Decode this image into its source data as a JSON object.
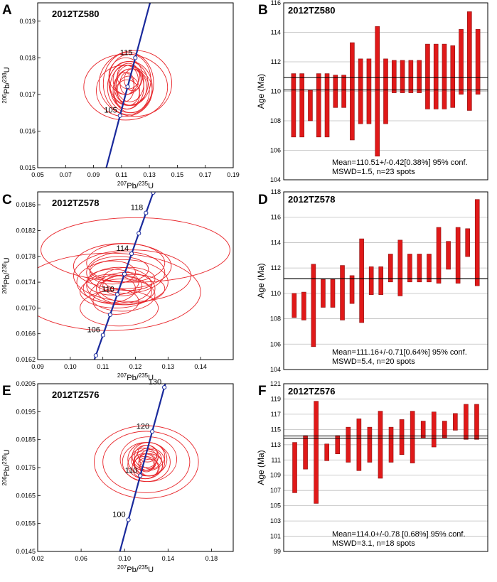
{
  "figure": {
    "concordia_axis_labels": {
      "y": {
        "sup": "206",
        "elem": "Pb/",
        "sup2": "238",
        "elem2": "U"
      },
      "x": {
        "sup": "207",
        "elem": "Pb/",
        "sup2": "235",
        "elem2": "U"
      }
    },
    "age_axis_label": "Age (Ma)"
  },
  "chart_data": [
    {
      "type": "concordia",
      "panel_letter": "A",
      "sample": "2012TZ580",
      "xlim": [
        0.05,
        0.19
      ],
      "ylim": [
        0.015,
        0.0195
      ],
      "x_ticks": [
        "0.05",
        "0.07",
        "0.09",
        "0.11",
        "0.13",
        "0.15",
        "0.17",
        "0.19"
      ],
      "y_ticks": [
        "0.015",
        "0.016",
        "0.017",
        "0.018",
        "0.019"
      ],
      "age_labels": [
        {
          "age": 115,
          "text": "115"
        },
        {
          "age": 105,
          "text": "105"
        }
      ],
      "tick_ages": [
        105,
        110,
        115
      ],
      "curve_age_range": [
        93,
        126
      ],
      "ellipses": [
        {
          "x": 0.115,
          "y": 0.0173,
          "rx": 0.018,
          "ry": 0.00085
        },
        {
          "x": 0.113,
          "y": 0.0172,
          "rx": 0.03,
          "ry": 0.0009
        },
        {
          "x": 0.115,
          "y": 0.0173,
          "rx": 0.014,
          "ry": 0.0006
        },
        {
          "x": 0.114,
          "y": 0.0172,
          "rx": 0.012,
          "ry": 0.0006
        },
        {
          "x": 0.116,
          "y": 0.0173,
          "rx": 0.01,
          "ry": 0.0005
        },
        {
          "x": 0.113,
          "y": 0.0174,
          "rx": 0.009,
          "ry": 0.0004
        },
        {
          "x": 0.117,
          "y": 0.0172,
          "rx": 0.011,
          "ry": 0.0005
        },
        {
          "x": 0.115,
          "y": 0.0171,
          "rx": 0.008,
          "ry": 0.0004
        },
        {
          "x": 0.112,
          "y": 0.0172,
          "rx": 0.007,
          "ry": 0.0004
        },
        {
          "x": 0.118,
          "y": 0.0174,
          "rx": 0.006,
          "ry": 0.0003
        },
        {
          "x": 0.114,
          "y": 0.0173,
          "rx": 0.005,
          "ry": 0.0003
        },
        {
          "x": 0.116,
          "y": 0.0172,
          "rx": 0.016,
          "ry": 0.0007
        },
        {
          "x": 0.12,
          "y": 0.0173,
          "rx": 0.026,
          "ry": 0.0009
        },
        {
          "x": 0.116,
          "y": 0.0174,
          "rx": 0.015,
          "ry": 0.0007
        },
        {
          "x": 0.112,
          "y": 0.0171,
          "rx": 0.02,
          "ry": 0.0007
        },
        {
          "x": 0.113,
          "y": 0.0175,
          "rx": 0.012,
          "ry": 0.0005
        },
        {
          "x": 0.117,
          "y": 0.0171,
          "rx": 0.013,
          "ry": 0.0006
        },
        {
          "x": 0.115,
          "y": 0.0175,
          "rx": 0.008,
          "ry": 0.00035
        },
        {
          "x": 0.114,
          "y": 0.017,
          "rx": 0.009,
          "ry": 0.0004
        }
      ]
    },
    {
      "type": "bar",
      "panel_letter": "B",
      "sample": "2012TZ580",
      "ylim": [
        104,
        116
      ],
      "y_ticks": [
        104,
        106,
        108,
        110,
        112,
        114,
        116
      ],
      "mean": 110.51,
      "mean_band": [
        110.09,
        110.93
      ],
      "annotation_line1": "Mean=110.51+/-0.42[0.38%] 95% conf.",
      "annotation_line2": "MSWD=1.5, n=23 spots",
      "bars": [
        [
          106.9,
          111.2
        ],
        [
          106.9,
          111.2
        ],
        [
          108.0,
          110.1
        ],
        [
          106.9,
          111.2
        ],
        [
          106.9,
          111.2
        ],
        [
          108.9,
          111.1
        ],
        [
          108.9,
          111.1
        ],
        [
          106.7,
          113.3
        ],
        [
          107.8,
          112.2
        ],
        [
          107.8,
          112.2
        ],
        [
          105.6,
          114.4
        ],
        [
          107.8,
          112.2
        ],
        [
          109.9,
          112.1
        ],
        [
          109.9,
          112.1
        ],
        [
          109.9,
          112.1
        ],
        [
          109.9,
          112.1
        ],
        [
          108.8,
          113.2
        ],
        [
          108.8,
          113.2
        ],
        [
          108.8,
          113.2
        ],
        [
          108.9,
          113.1
        ],
        [
          109.8,
          114.2
        ],
        [
          108.7,
          115.4
        ],
        [
          109.8,
          114.2
        ]
      ]
    },
    {
      "type": "concordia",
      "panel_letter": "C",
      "sample": "2012TZ578",
      "xlim": [
        0.09,
        0.15
      ],
      "ylim": [
        0.0162,
        0.0188
      ],
      "x_ticks": [
        "0.09",
        "0.10",
        "0.11",
        "0.12",
        "0.13",
        "0.14"
      ],
      "y_ticks": [
        "0.0162",
        "0.0166",
        "0.0170",
        "0.0174",
        "0.0178",
        "0.0182",
        "0.0186"
      ],
      "age_labels": [
        {
          "age": 118,
          "text": "118"
        },
        {
          "age": 114,
          "text": "114"
        },
        {
          "age": 110,
          "text": "110"
        },
        {
          "age": 106,
          "text": "106"
        }
      ],
      "tick_ages": [
        104,
        106,
        108,
        110,
        112,
        114,
        116,
        118,
        120
      ],
      "curve_age_range": [
        102,
        121
      ],
      "ellipses": [
        {
          "x": 0.12,
          "y": 0.0179,
          "rx": 0.029,
          "ry": 0.0005
        },
        {
          "x": 0.112,
          "y": 0.01725,
          "rx": 0.028,
          "ry": 0.0006
        },
        {
          "x": 0.119,
          "y": 0.0175,
          "rx": 0.018,
          "ry": 0.0004
        },
        {
          "x": 0.117,
          "y": 0.01755,
          "rx": 0.012,
          "ry": 0.00032
        },
        {
          "x": 0.116,
          "y": 0.0174,
          "rx": 0.014,
          "ry": 0.00035
        },
        {
          "x": 0.115,
          "y": 0.01735,
          "rx": 0.01,
          "ry": 0.00028
        },
        {
          "x": 0.117,
          "y": 0.0173,
          "rx": 0.009,
          "ry": 0.00025
        },
        {
          "x": 0.114,
          "y": 0.01725,
          "rx": 0.011,
          "ry": 0.00025
        },
        {
          "x": 0.116,
          "y": 0.0172,
          "rx": 0.01,
          "ry": 0.00025
        },
        {
          "x": 0.113,
          "y": 0.0174,
          "rx": 0.008,
          "ry": 0.0002
        },
        {
          "x": 0.118,
          "y": 0.01745,
          "rx": 0.008,
          "ry": 0.00018
        },
        {
          "x": 0.115,
          "y": 0.0176,
          "rx": 0.009,
          "ry": 0.0002
        },
        {
          "x": 0.114,
          "y": 0.0171,
          "rx": 0.007,
          "ry": 0.0002
        },
        {
          "x": 0.117,
          "y": 0.0177,
          "rx": 0.012,
          "ry": 0.0003
        },
        {
          "x": 0.116,
          "y": 0.01765,
          "rx": 0.015,
          "ry": 0.00035
        },
        {
          "x": 0.112,
          "y": 0.0173,
          "rx": 0.008,
          "ry": 0.00022
        },
        {
          "x": 0.115,
          "y": 0.017,
          "rx": 0.012,
          "ry": 0.00028
        },
        {
          "x": 0.119,
          "y": 0.0173,
          "rx": 0.01,
          "ry": 0.00022
        },
        {
          "x": 0.113,
          "y": 0.01755,
          "rx": 0.007,
          "ry": 0.00018
        },
        {
          "x": 0.116,
          "y": 0.01735,
          "rx": 0.006,
          "ry": 0.00016
        }
      ]
    },
    {
      "type": "bar",
      "panel_letter": "D",
      "sample": "2012TZ578",
      "ylim": [
        104,
        118
      ],
      "y_ticks": [
        104,
        106,
        108,
        110,
        112,
        114,
        116,
        118
      ],
      "mean": 111.16,
      "mean_band": [
        111.16,
        111.16
      ],
      "annotation_line1": "Mean=111.16+/-0.71[0.64%] 95% conf.",
      "annotation_line2": "MSWD=5.4, n=20 spots",
      "bars": [
        [
          108.1,
          110.0
        ],
        [
          107.9,
          110.1
        ],
        [
          105.8,
          112.3
        ],
        [
          108.9,
          111.1
        ],
        [
          108.9,
          111.1
        ],
        [
          107.9,
          112.2
        ],
        [
          109.2,
          111.4
        ],
        [
          107.7,
          114.3
        ],
        [
          109.9,
          112.1
        ],
        [
          109.9,
          112.1
        ],
        [
          110.9,
          113.1
        ],
        [
          109.8,
          114.2
        ],
        [
          110.9,
          113.1
        ],
        [
          110.9,
          113.1
        ],
        [
          110.9,
          113.1
        ],
        [
          110.8,
          115.2
        ],
        [
          111.9,
          114.1
        ],
        [
          110.8,
          115.2
        ],
        [
          112.9,
          115.1
        ],
        [
          110.6,
          117.4
        ]
      ]
    },
    {
      "type": "concordia",
      "panel_letter": "E",
      "sample": "2012TZ576",
      "xlim": [
        0.02,
        0.2
      ],
      "ylim": [
        0.0145,
        0.0205
      ],
      "x_ticks": [
        "0.02",
        "0.06",
        "0.10",
        "0.14",
        "0.18"
      ],
      "y_ticks": [
        "0.0145",
        "0.0155",
        "0.0165",
        "0.0175",
        "0.0185",
        "0.0195",
        "0.0205"
      ],
      "age_labels": [
        {
          "age": 130,
          "text": "130"
        },
        {
          "age": 120,
          "text": "120"
        },
        {
          "age": 110,
          "text": "110"
        },
        {
          "age": 100,
          "text": "100"
        }
      ],
      "tick_ages": [
        100,
        110,
        120,
        130
      ],
      "curve_age_range": [
        88,
        134
      ],
      "ellipses": [
        {
          "x": 0.12,
          "y": 0.0177,
          "rx": 0.048,
          "ry": 0.0013
        },
        {
          "x": 0.12,
          "y": 0.0177,
          "rx": 0.04,
          "ry": 0.0011
        },
        {
          "x": 0.122,
          "y": 0.0178,
          "rx": 0.026,
          "ry": 0.0008
        },
        {
          "x": 0.12,
          "y": 0.0177,
          "rx": 0.022,
          "ry": 0.0007
        },
        {
          "x": 0.121,
          "y": 0.0178,
          "rx": 0.018,
          "ry": 0.0006
        },
        {
          "x": 0.119,
          "y": 0.0176,
          "rx": 0.016,
          "ry": 0.0005
        },
        {
          "x": 0.123,
          "y": 0.0177,
          "rx": 0.014,
          "ry": 0.0005
        },
        {
          "x": 0.118,
          "y": 0.0178,
          "rx": 0.012,
          "ry": 0.0004
        },
        {
          "x": 0.122,
          "y": 0.0176,
          "rx": 0.013,
          "ry": 0.0004
        },
        {
          "x": 0.12,
          "y": 0.0179,
          "rx": 0.011,
          "ry": 0.0004
        },
        {
          "x": 0.124,
          "y": 0.0178,
          "rx": 0.01,
          "ry": 0.00035
        },
        {
          "x": 0.119,
          "y": 0.0175,
          "rx": 0.012,
          "ry": 0.0004
        },
        {
          "x": 0.121,
          "y": 0.0177,
          "rx": 0.008,
          "ry": 0.0003
        },
        {
          "x": 0.122,
          "y": 0.0179,
          "rx": 0.015,
          "ry": 0.0005
        },
        {
          "x": 0.118,
          "y": 0.0177,
          "rx": 0.01,
          "ry": 0.0003
        },
        {
          "x": 0.123,
          "y": 0.0175,
          "rx": 0.009,
          "ry": 0.0003
        },
        {
          "x": 0.12,
          "y": 0.0176,
          "rx": 0.007,
          "ry": 0.00025
        },
        {
          "x": 0.121,
          "y": 0.018,
          "rx": 0.009,
          "ry": 0.0003
        }
      ]
    },
    {
      "type": "bar",
      "panel_letter": "F",
      "sample": "2012TZ576",
      "ylim": [
        99,
        121
      ],
      "y_ticks": [
        99,
        101,
        103,
        105,
        107,
        109,
        111,
        113,
        115,
        117,
        119,
        121
      ],
      "mean": 114.0,
      "mean_band": [
        113.85,
        114.15
      ],
      "annotation_line1": "Mean=114.0+/-0.78 [0.68%] 95% conf.",
      "annotation_line2": "MSWD=3.1, n=18 spots",
      "bars": [
        [
          106.7,
          113.3
        ],
        [
          109.8,
          114.2
        ],
        [
          105.3,
          118.7
        ],
        [
          110.9,
          113.1
        ],
        [
          111.8,
          114.2
        ],
        [
          110.7,
          115.3
        ],
        [
          109.6,
          116.4
        ],
        [
          110.7,
          115.3
        ],
        [
          108.6,
          117.4
        ],
        [
          110.7,
          115.3
        ],
        [
          111.7,
          116.3
        ],
        [
          110.6,
          117.4
        ],
        [
          113.9,
          116.1
        ],
        [
          112.7,
          117.3
        ],
        [
          113.9,
          116.1
        ],
        [
          114.9,
          117.1
        ],
        [
          113.7,
          118.3
        ],
        [
          113.7,
          118.3
        ]
      ]
    }
  ]
}
